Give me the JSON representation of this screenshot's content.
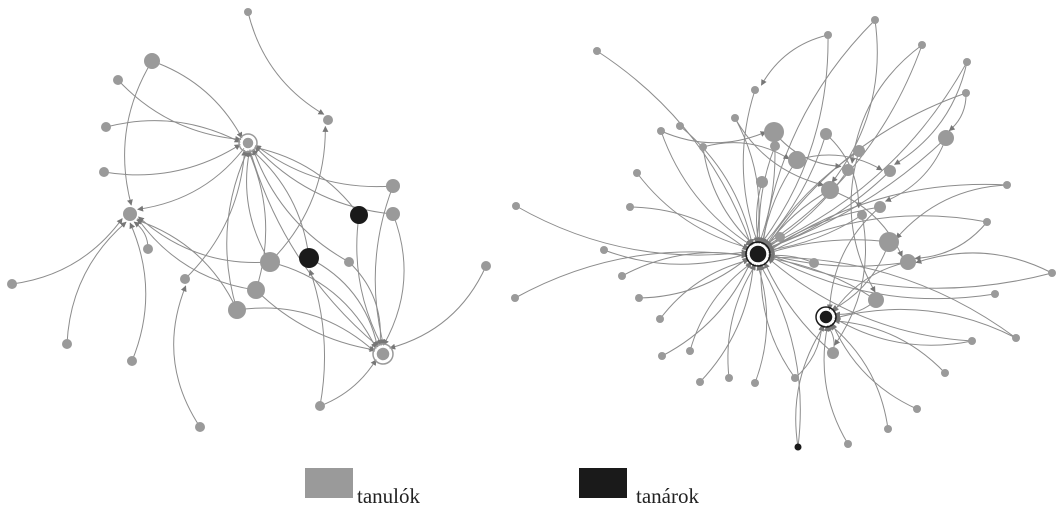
{
  "colors": {
    "student": "#9a9a9a",
    "teacher": "#1a1a1a",
    "edge": "#8c8c8c",
    "background": "#ffffff"
  },
  "legend": {
    "students_label": "tanulók",
    "teachers_label": "tanárok"
  },
  "networks": [
    {
      "name": "",
      "hubs": [
        {
          "id": "A1",
          "role": "student",
          "size": "large"
        },
        {
          "id": "A2",
          "role": "student",
          "size": "small"
        },
        {
          "id": "A3",
          "role": "student",
          "size": "small"
        },
        {
          "id": "A4",
          "role": "student",
          "size": "small"
        }
      ]
    },
    {
      "name": "",
      "hubs": [
        {
          "id": "B1",
          "role": "teacher",
          "size": "large"
        },
        {
          "id": "B2",
          "role": "teacher",
          "size": "medium"
        }
      ]
    }
  ]
}
